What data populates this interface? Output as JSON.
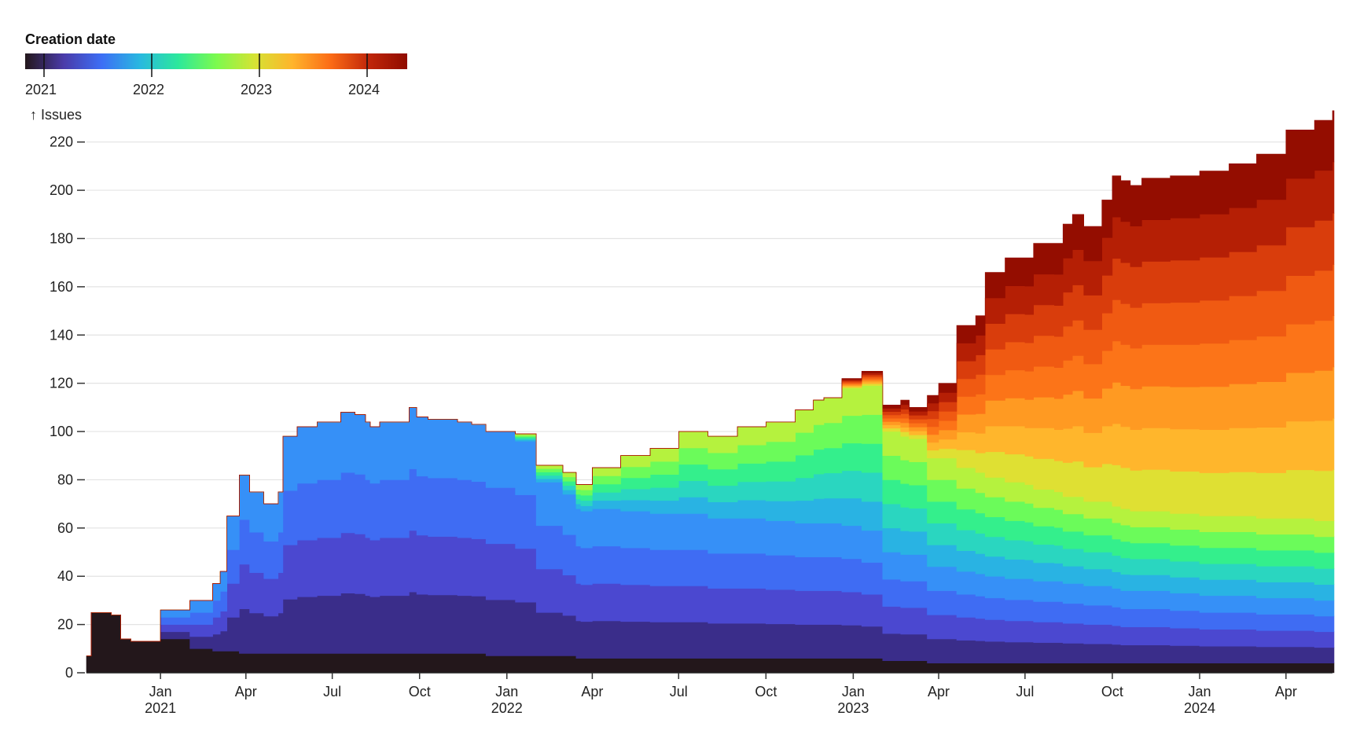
{
  "legend": {
    "title": "Creation date",
    "ticks": [
      "2021",
      "2022",
      "2023",
      "2024"
    ],
    "colors": [
      "#23171b",
      "#4a3ba8",
      "#3d6ef5",
      "#29b8e0",
      "#2ce89c",
      "#7bfa4e",
      "#d5e334",
      "#ffb42b",
      "#fb6b16",
      "#c0260a",
      "#900c00"
    ]
  },
  "chart_data": {
    "type": "area",
    "title": "",
    "ylabel": "↑ Issues",
    "xlabel": "",
    "ylim": [
      0,
      230
    ],
    "x_range": [
      "2020-10-15",
      "2024-05-20"
    ],
    "y_ticks": [
      "0",
      "20",
      "40",
      "60",
      "80",
      "100",
      "120",
      "140",
      "160",
      "180",
      "200",
      "220"
    ],
    "x_ticks": [
      {
        "date": "2021-01-01",
        "label": "Jan",
        "year": "2021"
      },
      {
        "date": "2021-04-01",
        "label": "Apr",
        "year": ""
      },
      {
        "date": "2021-07-01",
        "label": "Jul",
        "year": ""
      },
      {
        "date": "2021-10-01",
        "label": "Oct",
        "year": ""
      },
      {
        "date": "2022-01-01",
        "label": "Jan",
        "year": "2022"
      },
      {
        "date": "2022-04-01",
        "label": "Apr",
        "year": ""
      },
      {
        "date": "2022-07-01",
        "label": "Jul",
        "year": ""
      },
      {
        "date": "2022-10-01",
        "label": "Oct",
        "year": ""
      },
      {
        "date": "2023-01-01",
        "label": "Jan",
        "year": "2023"
      },
      {
        "date": "2023-04-01",
        "label": "Apr",
        "year": ""
      },
      {
        "date": "2023-07-01",
        "label": "Jul",
        "year": ""
      },
      {
        "date": "2023-10-01",
        "label": "Oct",
        "year": ""
      },
      {
        "date": "2024-01-01",
        "label": "Jan",
        "year": "2024"
      },
      {
        "date": "2024-04-01",
        "label": "Apr",
        "year": ""
      }
    ],
    "grid": true,
    "total_issues": {
      "x": [
        "2020-10-15",
        "2020-10-20",
        "2020-10-28",
        "2020-11-10",
        "2020-11-20",
        "2020-12-01",
        "2021-01-01",
        "2021-02-01",
        "2021-02-25",
        "2021-03-05",
        "2021-03-12",
        "2021-03-25",
        "2021-04-05",
        "2021-04-20",
        "2021-05-05",
        "2021-05-10",
        "2021-05-25",
        "2021-06-15",
        "2021-07-10",
        "2021-07-25",
        "2021-08-05",
        "2021-08-10",
        "2021-08-20",
        "2021-09-20",
        "2021-09-28",
        "2021-10-10",
        "2021-11-10",
        "2021-11-25",
        "2021-12-10",
        "2022-01-10",
        "2022-02-01",
        "2022-03-01",
        "2022-03-15",
        "2022-03-20",
        "2022-04-01",
        "2022-05-01",
        "2022-06-01",
        "2022-07-01",
        "2022-08-01",
        "2022-09-01",
        "2022-10-01",
        "2022-11-01",
        "2022-11-20",
        "2022-12-01",
        "2022-12-20",
        "2023-01-10",
        "2023-01-20",
        "2023-02-01",
        "2023-02-20",
        "2023-03-01",
        "2023-03-20",
        "2023-04-01",
        "2023-04-20",
        "2023-05-10",
        "2023-05-20",
        "2023-06-10",
        "2023-07-01",
        "2023-07-10",
        "2023-08-01",
        "2023-08-10",
        "2023-08-20",
        "2023-09-01",
        "2023-09-20",
        "2023-10-01",
        "2023-10-10",
        "2023-10-20",
        "2023-11-01",
        "2023-12-01",
        "2024-01-01",
        "2024-02-01",
        "2024-03-01",
        "2024-04-01",
        "2024-05-01",
        "2024-05-20"
      ],
      "y": [
        7,
        25,
        25,
        24,
        14,
        13,
        26,
        30,
        37,
        42,
        65,
        82,
        75,
        70,
        75,
        98,
        102,
        104,
        108,
        107,
        104,
        102,
        104,
        110,
        106,
        105,
        104,
        103,
        100,
        99,
        86,
        83,
        78,
        78,
        85,
        90,
        93,
        100,
        98,
        102,
        104,
        109,
        113,
        114,
        122,
        125,
        125,
        111,
        113,
        110,
        115,
        120,
        144,
        148,
        166,
        172,
        172,
        178,
        178,
        186,
        190,
        185,
        196,
        206,
        204,
        202,
        205,
        207,
        209,
        212,
        217,
        225,
        229,
        233
      ]
    },
    "series": [
      {
        "year": "2020",
        "values": [
          7,
          25,
          25,
          24,
          14,
          13,
          14,
          10,
          9,
          9,
          9,
          8,
          8,
          8,
          8,
          8,
          8,
          8,
          8,
          8,
          8,
          8,
          8,
          8,
          8,
          8,
          8,
          8,
          7,
          7,
          7,
          7,
          6,
          6,
          6,
          6,
          6,
          6,
          6,
          6,
          6,
          6,
          6,
          6,
          6,
          6,
          6,
          5,
          5,
          5,
          4,
          4,
          4,
          4,
          4,
          4,
          4,
          4,
          4,
          4,
          4,
          4,
          4,
          4,
          4,
          4,
          4,
          4,
          4,
          4,
          4,
          4,
          4,
          4
        ]
      },
      {
        "year": "2021",
        "values": [
          0,
          0,
          0,
          0,
          0,
          0,
          12,
          20,
          28,
          33,
          56,
          74,
          67,
          62,
          67,
          90,
          94,
          96,
          100,
          99,
          96,
          94,
          96,
          102,
          98,
          97,
          96,
          95,
          93,
          89,
          72,
          67,
          62,
          61,
          62,
          61,
          60,
          60,
          58,
          58,
          57,
          56,
          56,
          56,
          55,
          53,
          53,
          45,
          44,
          44,
          40,
          40,
          38,
          37,
          36,
          35,
          35,
          34,
          34,
          33,
          33,
          32,
          32,
          31,
          30,
          30,
          30,
          29,
          28,
          28,
          27,
          27,
          26,
          26
        ]
      },
      {
        "year": "2022",
        "values": [
          0,
          0,
          0,
          0,
          0,
          0,
          0,
          0,
          0,
          0,
          0,
          0,
          0,
          0,
          0,
          0,
          0,
          0,
          0,
          0,
          0,
          0,
          0,
          0,
          0,
          0,
          0,
          0,
          0,
          3,
          7,
          9,
          10,
          11,
          17,
          23,
          27,
          34,
          34,
          38,
          41,
          47,
          51,
          52,
          57,
          60,
          60,
          50,
          49,
          48,
          45,
          45,
          43,
          42,
          41,
          40,
          39,
          38,
          37,
          36,
          36,
          35,
          35,
          34,
          34,
          33,
          33,
          33,
          33,
          33,
          33,
          33,
          33,
          33
        ]
      },
      {
        "year": "2023",
        "values": [
          0,
          0,
          0,
          0,
          0,
          0,
          0,
          0,
          0,
          0,
          0,
          0,
          0,
          0,
          0,
          0,
          0,
          0,
          0,
          0,
          0,
          0,
          0,
          0,
          0,
          0,
          0,
          0,
          0,
          0,
          0,
          0,
          0,
          0,
          0,
          0,
          0,
          0,
          0,
          0,
          0,
          0,
          0,
          0,
          4,
          6,
          6,
          11,
          15,
          13,
          26,
          31,
          59,
          65,
          85,
          93,
          94,
          102,
          103,
          113,
          117,
          114,
          125,
          137,
          136,
          135,
          138,
          140,
          143,
          146,
          151,
          161,
          166,
          170
        ]
      }
    ]
  }
}
